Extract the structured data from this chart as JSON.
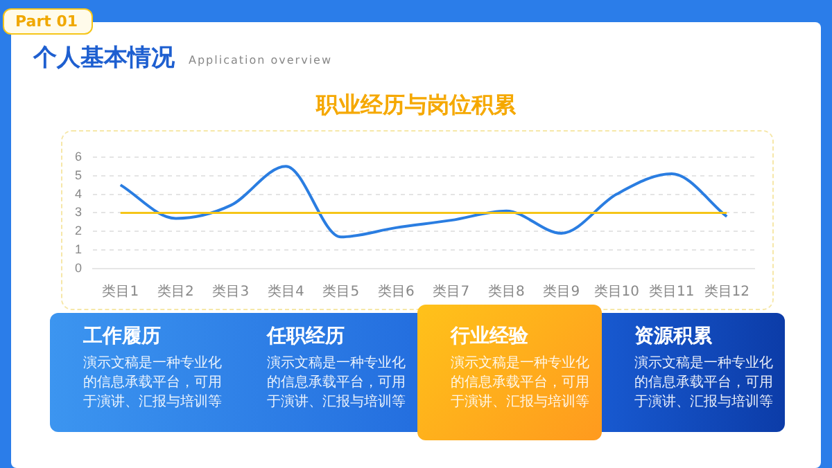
{
  "chart_data": {
    "type": "line",
    "title": "职业经历与岗位积累",
    "categories": [
      "类目1",
      "类目2",
      "类目3",
      "类目4",
      "类目5",
      "类目6",
      "类目7",
      "类目8",
      "类目9",
      "类目10",
      "类目11",
      "类目12"
    ],
    "series": [
      {
        "color": "#2a7de1",
        "values": [
          4.5,
          2.7,
          3.4,
          5.5,
          1.7,
          2.2,
          2.6,
          3.1,
          1.9,
          4,
          5.1,
          2.8
        ]
      }
    ],
    "ref_lines": [
      {
        "axis": "y",
        "value": 3,
        "color": "#f5c518"
      }
    ],
    "ylim": [
      0,
      6
    ],
    "yticks": [
      0,
      1,
      2,
      3,
      4,
      5,
      6
    ],
    "grid": "y",
    "legend": false,
    "marker": "none",
    "line_style": "solid",
    "annotations": [
      "Part 01",
      "个人基本情况",
      "Application overview",
      "工作履历",
      "演示文稿是一种专业化的信息承载平台，可用于演讲、汇报与培训等",
      "任职经历",
      "演示文稿是一种专业化的信息承载平台，可用于演讲、汇报与培训等",
      "行业经验",
      "演示文稿是一种专业化的信息承载平台，可用于演讲、汇报与培训等",
      "资源积累",
      "演示文稿是一种专业化的信息承载平台，可用于演讲、汇报与培训等"
    ]
  }
}
